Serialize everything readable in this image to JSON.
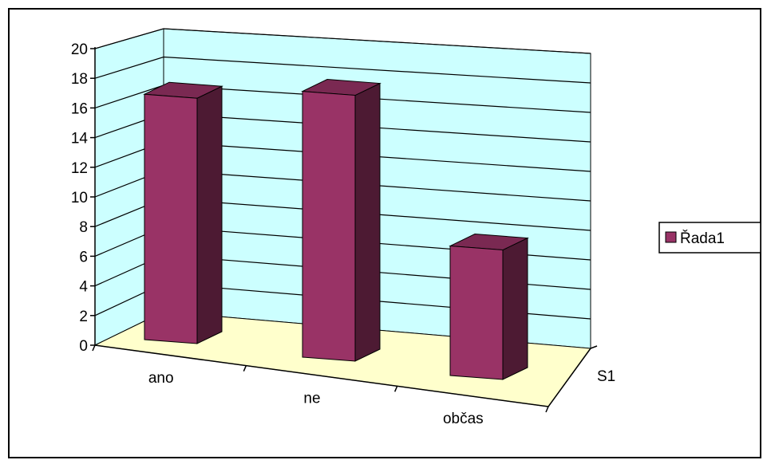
{
  "chart_data": {
    "type": "bar",
    "categories": [
      "ano",
      "ne",
      "občas"
    ],
    "series": [
      {
        "name": "Řada1",
        "values": [
          18,
          19.5,
          9.5
        ]
      }
    ],
    "depth_axis_labels": [
      "S1"
    ],
    "y_ticks": [
      0,
      2,
      4,
      6,
      8,
      10,
      12,
      14,
      16,
      18,
      20
    ],
    "ylim": [
      0,
      20
    ],
    "grid": true,
    "legend_position": "right",
    "three_d": true,
    "colors": {
      "bar_front": "#993366",
      "bar_side": "#4d1a33",
      "bar_top": "#7a2952",
      "wall": "#ccffff",
      "floor": "#ffffcc",
      "grid": "#000000"
    }
  }
}
